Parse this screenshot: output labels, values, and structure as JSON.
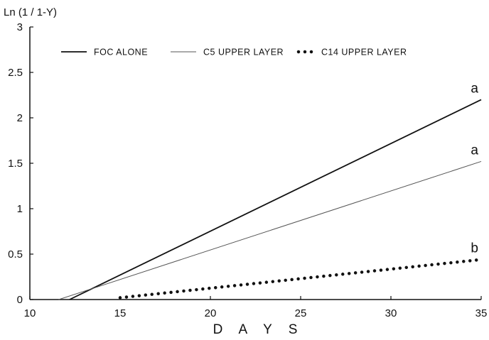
{
  "chart_data": {
    "type": "line",
    "ylabel": "Ln (1 / 1-Y)",
    "xlabel": "D A Y S",
    "xlim": [
      10,
      35
    ],
    "ylim": [
      0,
      3
    ],
    "x_ticks": [
      "10",
      "15",
      "20",
      "25",
      "30",
      "35"
    ],
    "y_ticks": [
      "0",
      "0.5",
      "1",
      "1.5",
      "2",
      "2.5",
      "3"
    ],
    "grid": false,
    "legend_position": "top",
    "series": [
      {
        "name": "FOC ALONE",
        "style": "solid-thick",
        "color": "#111111",
        "points": [
          [
            12.2,
            0
          ],
          [
            35,
            2.2
          ]
        ],
        "end_annotation": "a"
      },
      {
        "name": "C5 UPPER LAYER",
        "style": "solid-thin",
        "color": "#555555",
        "points": [
          [
            11.6,
            0
          ],
          [
            35,
            1.52
          ]
        ],
        "end_annotation": "a"
      },
      {
        "name": "C14 UPPER LAYER",
        "style": "dotted",
        "color": "#111111",
        "points": [
          [
            15,
            0.02
          ],
          [
            35,
            0.44
          ]
        ],
        "end_annotation": "b"
      }
    ]
  }
}
